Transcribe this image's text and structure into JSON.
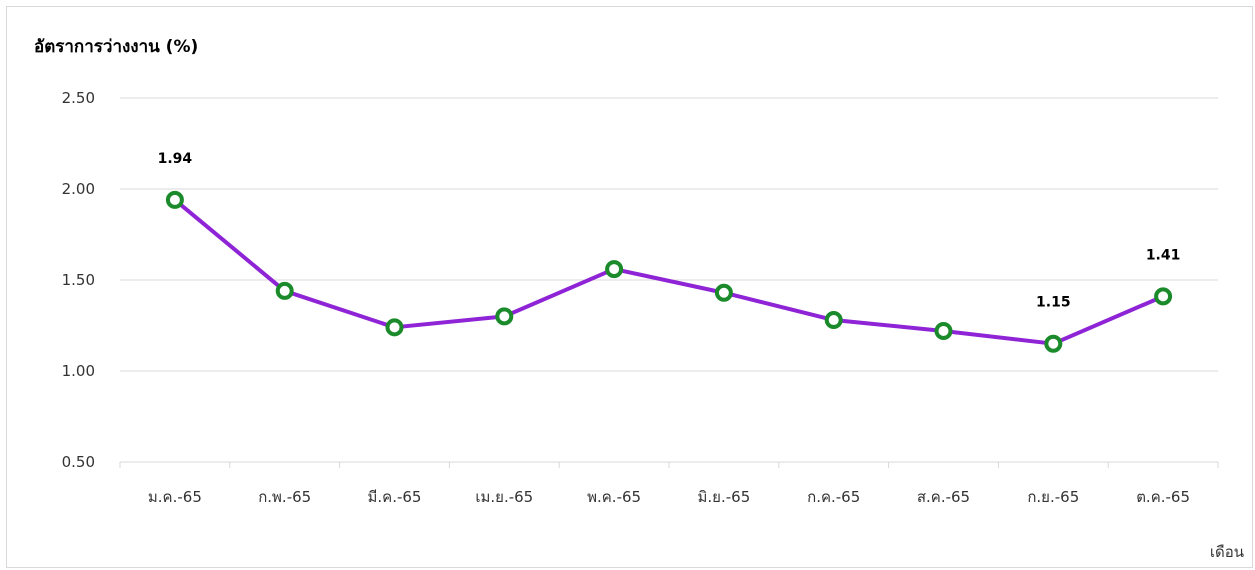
{
  "chart_data": {
    "type": "line",
    "ylabel": "อัตราการว่างงาน (%)",
    "xlabel": "เดือน",
    "categories": [
      "ม.ค.-65",
      "ก.พ.-65",
      "มี.ค.-65",
      "เม.ย.-65",
      "พ.ค.-65",
      "มิ.ย.-65",
      "ก.ค.-65",
      "ส.ค.-65",
      "ก.ย.-65",
      "ต.ค.-65"
    ],
    "series": [
      {
        "values": [
          1.94,
          1.44,
          1.24,
          1.3,
          1.56,
          1.43,
          1.28,
          1.22,
          1.15,
          1.41
        ]
      }
    ],
    "data_labels": [
      {
        "index": 0,
        "text": "1.94"
      },
      {
        "index": 8,
        "text": "1.15"
      },
      {
        "index": 9,
        "text": "1.41"
      }
    ],
    "ylim": [
      0.5,
      2.5
    ],
    "yticks": [
      "0.50",
      "1.00",
      "1.50",
      "2.00",
      "2.50"
    ],
    "grid": true,
    "legend": "none",
    "colors": {
      "line": "#8e24d6",
      "marker_edge": "#1b8a2b",
      "marker_fill": "#ffffff",
      "grid": "#d9d9d9"
    }
  }
}
